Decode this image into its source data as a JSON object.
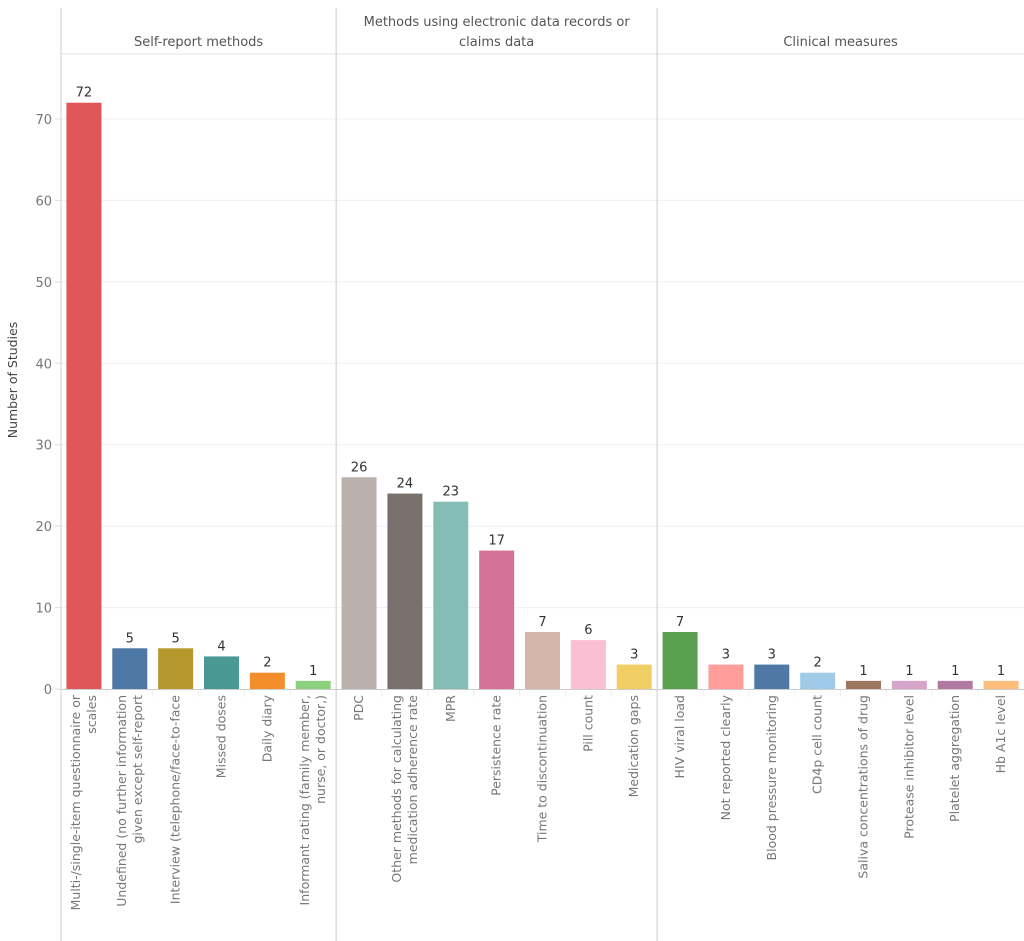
{
  "chart_data": {
    "type": "bar",
    "title": "",
    "xlabel": "",
    "ylabel": "Number of Studies",
    "ylim": [
      0,
      72
    ],
    "yticks": [
      0,
      10,
      20,
      30,
      40,
      50,
      60,
      70
    ],
    "grid": true,
    "legend": "none",
    "groups": [
      {
        "name": "Self-report methods",
        "categories": [
          {
            "label": "Multi-/single-item questionnaire or scales",
            "lines": [
              "Multi-/single-item questionnaire or",
              "scales"
            ],
            "value": 72,
            "color": "#e15759"
          },
          {
            "label": "Undefined (no further information given except self-report",
            "lines": [
              "Undefined (no further information",
              "given except self-report"
            ],
            "value": 5,
            "color": "#4e79a7"
          },
          {
            "label": "Interview (telephone/face-to-face",
            "lines": [
              "Interview (telephone/face-to-face"
            ],
            "value": 5,
            "color": "#b6992d"
          },
          {
            "label": "Missed doses",
            "lines": [
              "Missed doses"
            ],
            "value": 4,
            "color": "#499894"
          },
          {
            "label": "Daily diary",
            "lines": [
              "Daily diary"
            ],
            "value": 2,
            "color": "#f28e2b"
          },
          {
            "label": "Informant rating (family member, nurse, or doctor,)",
            "lines": [
              "Informant rating (family member,",
              "nurse, or doctor,)"
            ],
            "value": 1,
            "color": "#8cd17d"
          }
        ]
      },
      {
        "name": "Methods using electronic data records or claims data",
        "title_lines": [
          "Methods using electronic data records or",
          "claims data"
        ],
        "categories": [
          {
            "label": "PDC",
            "lines": [
              "PDC"
            ],
            "value": 26,
            "color": "#bab0ac"
          },
          {
            "label": "Other methods for calculating medication adherence rate",
            "lines": [
              "Other methods for calculating",
              "medication adherence rate"
            ],
            "value": 24,
            "color": "#79706e"
          },
          {
            "label": "MPR",
            "lines": [
              "MPR"
            ],
            "value": 23,
            "color": "#86bcb6"
          },
          {
            "label": "Persistence rate",
            "lines": [
              "Persistence rate"
            ],
            "value": 17,
            "color": "#d37295"
          },
          {
            "label": "Time to discontinuation",
            "lines": [
              "Time to discontinuation"
            ],
            "value": 7,
            "color": "#d4b5a8"
          },
          {
            "label": "Pill count",
            "lines": [
              "Pill count"
            ],
            "value": 6,
            "color": "#fabfd2"
          },
          {
            "label": "Medication gaps",
            "lines": [
              "Medication gaps"
            ],
            "value": 3,
            "color": "#f1ce63"
          }
        ]
      },
      {
        "name": "Clinical measures",
        "categories": [
          {
            "label": "HIV viral load",
            "lines": [
              "HIV viral load"
            ],
            "value": 7,
            "color": "#59a14f"
          },
          {
            "label": "Not reported clearly",
            "lines": [
              "Not reported clearly"
            ],
            "value": 3,
            "color": "#ff9d9a"
          },
          {
            "label": "Blood pressure monitoring",
            "lines": [
              "Blood pressure monitoring"
            ],
            "value": 3,
            "color": "#4e79a7"
          },
          {
            "label": "CD4p cell count",
            "lines": [
              "CD4p cell count"
            ],
            "value": 2,
            "color": "#a0cbe8"
          },
          {
            "label": "Saliva concentrations of drug",
            "lines": [
              "Saliva concentrations of drug"
            ],
            "value": 1,
            "color": "#9d7660"
          },
          {
            "label": "Protease inhibitor level",
            "lines": [
              "Protease inhibitor level"
            ],
            "value": 1,
            "color": "#d7a5c9"
          },
          {
            "label": "Platelet aggregation",
            "lines": [
              "Platelet aggregation"
            ],
            "value": 1,
            "color": "#b07aa1"
          },
          {
            "label": "Hb A1c level",
            "lines": [
              "Hb A1c level"
            ],
            "value": 1,
            "color": "#ffbe7d"
          }
        ]
      }
    ]
  }
}
